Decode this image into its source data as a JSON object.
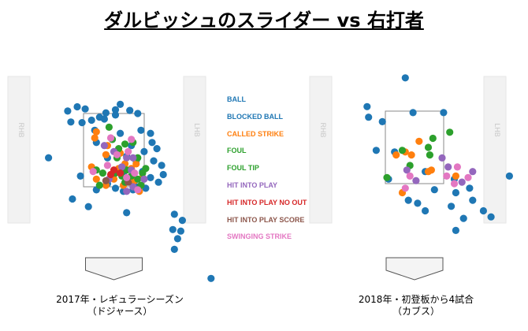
{
  "title": "ダルビッシュのスライダー vs 右打者",
  "colors": {
    "BALL": "#1f77b4",
    "BLOCKED BALL": "#1f77b4",
    "CALLED STRIKE": "#ff7f0e",
    "FOUL": "#2ca02c",
    "FOUL TIP": "#2ca02c",
    "HIT INTO PLAY": "#9467bd",
    "HIT INTO PLAY NO OUT": "#d62728",
    "HIT INTO PLAY SCORE": "#8c564b",
    "SWINGING STRIKE": "#e377c2"
  },
  "chart_data": {
    "type": "scatter",
    "legend": [
      "BALL",
      "BLOCKED BALL",
      "CALLED STRIKE",
      "FOUL",
      "FOUL TIP",
      "HIT INTO PLAY",
      "HIT INTO PLAY NO OUT",
      "HIT INTO PLAY SCORE",
      "SWINGING STRIKE"
    ],
    "legend_placement": "center",
    "batter_box_labels": {
      "left": "RHB",
      "right": "LHB"
    },
    "panels": [
      {
        "caption_line1": "2017年・レギュラーシーズン",
        "caption_line2": "（ドジャース）",
        "points": [
          [
            -1.45,
            3.48,
            "BALL"
          ],
          [
            -1.15,
            3.62,
            "BALL"
          ],
          [
            -0.9,
            3.55,
            "BALL"
          ],
          [
            -0.45,
            3.28,
            "BALL"
          ],
          [
            -0.25,
            3.42,
            "BALL"
          ],
          [
            0.05,
            3.52,
            "BALL"
          ],
          [
            0.2,
            3.7,
            "BALL"
          ],
          [
            0.5,
            3.5,
            "BALL"
          ],
          [
            0.75,
            3.4,
            "BALL"
          ],
          [
            0.05,
            3.35,
            "BALL"
          ],
          [
            -0.3,
            3.22,
            "BALL"
          ],
          [
            -1.35,
            3.12,
            "BALL"
          ],
          [
            -1.0,
            3.1,
            "BALL"
          ],
          [
            -0.7,
            3.18,
            "BALL"
          ],
          [
            -2.05,
            1.95,
            "BALL"
          ],
          [
            0.85,
            2.85,
            "BALL"
          ],
          [
            1.15,
            2.75,
            "BALL"
          ],
          [
            1.2,
            2.45,
            "BALL"
          ],
          [
            1.35,
            2.25,
            "BALL"
          ],
          [
            1.25,
            1.85,
            "BALL"
          ],
          [
            1.5,
            1.7,
            "BALL"
          ],
          [
            1.55,
            1.4,
            "BALL"
          ],
          [
            1.4,
            1.15,
            "BALL"
          ],
          [
            1.15,
            1.3,
            "BALL"
          ],
          [
            1.0,
            0.95,
            "BALL"
          ],
          [
            0.65,
            1.05,
            "BALL"
          ],
          [
            0.6,
            0.9,
            "BALL"
          ],
          [
            0.3,
            0.85,
            "BALL"
          ],
          [
            0.05,
            0.95,
            "BALL"
          ],
          [
            -0.2,
            1.1,
            "BALL"
          ],
          [
            -0.55,
            0.9,
            "BALL"
          ],
          [
            -1.3,
            0.6,
            "BALL"
          ],
          [
            -1.05,
            1.35,
            "BALL"
          ],
          [
            -0.8,
            0.35,
            "BALL"
          ],
          [
            0.4,
            0.15,
            "BALL"
          ],
          [
            1.9,
            0.1,
            "BALL"
          ],
          [
            2.15,
            -0.1,
            "BALL"
          ],
          [
            2.1,
            -0.45,
            "BALL"
          ],
          [
            1.85,
            -0.4,
            "BALL"
          ],
          [
            2.0,
            -0.7,
            "BALL"
          ],
          [
            1.9,
            -1.05,
            "BALL"
          ],
          [
            3.05,
            -2.0,
            "BALL"
          ],
          [
            0.4,
            2.0,
            "BALL"
          ],
          [
            0.9,
            1.5,
            "BALL"
          ],
          [
            0.55,
            2.35,
            "BALL"
          ],
          [
            -0.05,
            2.55,
            "BALL"
          ],
          [
            0.2,
            2.75,
            "BALL"
          ],
          [
            -0.6,
            2.85,
            "BALL"
          ],
          [
            0.7,
            1.85,
            "BALL"
          ],
          [
            -0.55,
            2.45,
            "BALL"
          ],
          [
            0.3,
            1.45,
            "BALL"
          ],
          [
            0.95,
            2.15,
            "BALL"
          ],
          [
            -0.2,
            1.95,
            "BALL"
          ],
          [
            0.6,
            1.05,
            "BALL"
          ],
          [
            -0.55,
            2.8,
            "CALLED STRIKE"
          ],
          [
            -0.6,
            2.6,
            "CALLED STRIKE"
          ],
          [
            -0.2,
            2.35,
            "CALLED STRIKE"
          ],
          [
            -0.25,
            2.05,
            "CALLED STRIKE"
          ],
          [
            0.2,
            2.1,
            "CALLED STRIKE"
          ],
          [
            0.35,
            1.75,
            "CALLED STRIKE"
          ],
          [
            0.55,
            1.6,
            "CALLED STRIKE"
          ],
          [
            0.7,
            1.75,
            "CALLED STRIKE"
          ],
          [
            0.65,
            1.2,
            "CALLED STRIKE"
          ],
          [
            0.3,
            1.05,
            "CALLED STRIKE"
          ],
          [
            0.0,
            1.25,
            "CALLED STRIKE"
          ],
          [
            -0.25,
            1.05,
            "CALLED STRIKE"
          ],
          [
            -0.55,
            1.25,
            "CALLED STRIKE"
          ],
          [
            -0.7,
            1.65,
            "CALLED STRIKE"
          ],
          [
            0.9,
            1.3,
            "CALLED STRIKE"
          ],
          [
            0.8,
            0.85,
            "CALLED STRIKE"
          ],
          [
            0.45,
            1.3,
            "CALLED STRIKE"
          ],
          [
            0.15,
            1.6,
            "CALLED STRIKE"
          ],
          [
            -0.15,
            2.95,
            "FOUL"
          ],
          [
            -0.05,
            2.55,
            "FOUL"
          ],
          [
            0.15,
            2.25,
            "FOUL"
          ],
          [
            0.35,
            2.4,
            "FOUL"
          ],
          [
            0.6,
            2.45,
            "FOUL"
          ],
          [
            0.1,
            1.95,
            "FOUL"
          ],
          [
            0.75,
            1.95,
            "FOUL"
          ],
          [
            1.0,
            1.6,
            "FOUL"
          ],
          [
            0.9,
            1.45,
            "FOUL"
          ],
          [
            0.4,
            1.55,
            "FOUL"
          ],
          [
            -0.35,
            1.45,
            "FOUL"
          ],
          [
            0.05,
            1.45,
            "FOUL"
          ],
          [
            0.25,
            1.35,
            "FOUL"
          ],
          [
            0.55,
            1.35,
            "FOUL"
          ],
          [
            0.75,
            1.25,
            "FOUL"
          ],
          [
            0.85,
            1.05,
            "FOUL"
          ],
          [
            0.35,
            1.15,
            "FOUL"
          ],
          [
            -0.45,
            1.05,
            "FOUL"
          ],
          [
            -0.55,
            1.55,
            "FOUL"
          ],
          [
            0.0,
            2.15,
            "HIT INTO PLAY"
          ],
          [
            -0.3,
            2.35,
            "HIT INTO PLAY"
          ],
          [
            0.4,
            1.95,
            "HIT INTO PLAY"
          ],
          [
            0.6,
            1.95,
            "HIT INTO PLAY"
          ],
          [
            0.55,
            1.55,
            "HIT INTO PLAY"
          ],
          [
            0.25,
            1.65,
            "HIT INTO PLAY"
          ],
          [
            -0.15,
            1.25,
            "HIT INTO PLAY"
          ],
          [
            0.95,
            1.25,
            "HIT INTO PLAY"
          ],
          [
            0.6,
            1.0,
            "HIT INTO PLAY"
          ],
          [
            0.4,
            0.85,
            "HIT INTO PLAY"
          ],
          [
            0.2,
            1.45,
            "HIT INTO PLAY NO OUT"
          ],
          [
            0.0,
            1.55,
            "HIT INTO PLAY NO OUT"
          ],
          [
            -0.1,
            1.4,
            "HIT INTO PLAY NO OUT"
          ],
          [
            -0.25,
            1.2,
            "HIT INTO PLAY SCORE"
          ],
          [
            0.45,
            1.15,
            "HIT INTO PLAY SCORE"
          ],
          [
            -0.1,
            2.6,
            "SWINGING STRIKE"
          ],
          [
            0.55,
            2.55,
            "SWINGING STRIKE"
          ],
          [
            0.45,
            2.15,
            "SWINGING STRIKE"
          ],
          [
            0.1,
            2.05,
            "SWINGING STRIKE"
          ],
          [
            -0.65,
            1.5,
            "SWINGING STRIKE"
          ],
          [
            0.4,
            1.3,
            "SWINGING STRIKE"
          ],
          [
            0.75,
            0.9,
            "SWINGING STRIKE"
          ],
          [
            0.65,
            1.45,
            "SWINGING STRIKE"
          ],
          [
            -0.2,
            1.7,
            "SWINGING STRIKE"
          ]
        ]
      },
      {
        "caption_line1": "2018年・初登板から4試合",
        "caption_line2": "（カブス）",
        "points": [
          [
            -0.3,
            4.5,
            "BALL"
          ],
          [
            -1.55,
            3.55,
            "BALL"
          ],
          [
            -1.5,
            3.2,
            "BALL"
          ],
          [
            -1.05,
            3.05,
            "BALL"
          ],
          [
            -0.05,
            3.35,
            "BALL"
          ],
          [
            0.95,
            3.35,
            "BALL"
          ],
          [
            -1.25,
            2.1,
            "BALL"
          ],
          [
            -0.65,
            2.05,
            "BALL"
          ],
          [
            -0.85,
            1.15,
            "BALL"
          ],
          [
            -0.2,
            0.45,
            "BALL"
          ],
          [
            0.35,
            0.1,
            "BALL"
          ],
          [
            0.35,
            1.4,
            "BALL"
          ],
          [
            1.3,
            1.15,
            "BALL"
          ],
          [
            1.8,
            0.85,
            "BALL"
          ],
          [
            1.9,
            0.45,
            "BALL"
          ],
          [
            2.25,
            0.1,
            "BALL"
          ],
          [
            1.6,
            -0.15,
            "BALL"
          ],
          [
            1.35,
            -0.55,
            "BALL"
          ],
          [
            2.5,
            -0.1,
            "BALL"
          ],
          [
            3.1,
            1.25,
            "BALL"
          ],
          [
            1.2,
            0.25,
            "BALL"
          ],
          [
            1.35,
            0.7,
            "BALL"
          ],
          [
            0.65,
            0.8,
            "BALL"
          ],
          [
            0.1,
            0.35,
            "BALL"
          ],
          [
            -0.6,
            1.95,
            "CALLED STRIKE"
          ],
          [
            -0.3,
            2.05,
            "CALLED STRIKE"
          ],
          [
            -0.1,
            1.95,
            "CALLED STRIKE"
          ],
          [
            0.15,
            2.4,
            "CALLED STRIKE"
          ],
          [
            0.45,
            1.4,
            "CALLED STRIKE"
          ],
          [
            0.55,
            1.45,
            "CALLED STRIKE"
          ],
          [
            1.35,
            1.25,
            "CALLED STRIKE"
          ],
          [
            -0.4,
            0.7,
            "CALLED STRIKE"
          ],
          [
            0.6,
            2.5,
            "FOUL"
          ],
          [
            1.15,
            2.7,
            "FOUL"
          ],
          [
            0.45,
            2.2,
            "FOUL"
          ],
          [
            0.5,
            1.95,
            "FOUL"
          ],
          [
            -0.15,
            1.6,
            "FOUL"
          ],
          [
            -0.9,
            1.2,
            "FOUL"
          ],
          [
            -0.4,
            2.1,
            "FOUL"
          ],
          [
            -0.25,
            1.45,
            "HIT INTO PLAY"
          ],
          [
            0.9,
            1.85,
            "HIT INTO PLAY"
          ],
          [
            1.1,
            1.55,
            "HIT INTO PLAY"
          ],
          [
            1.9,
            1.4,
            "HIT INTO PLAY"
          ],
          [
            0.05,
            1.1,
            "HIT INTO PLAY"
          ],
          [
            1.55,
            1.05,
            "HIT INTO PLAY"
          ],
          [
            -0.15,
            1.25,
            "SWINGING STRIKE"
          ],
          [
            1.05,
            1.25,
            "SWINGING STRIKE"
          ],
          [
            1.3,
            1.0,
            "SWINGING STRIKE"
          ],
          [
            1.4,
            1.55,
            "SWINGING STRIKE"
          ],
          [
            -0.3,
            0.85,
            "SWINGING STRIKE"
          ],
          [
            1.75,
            1.2,
            "SWINGING STRIKE"
          ]
        ]
      }
    ]
  }
}
